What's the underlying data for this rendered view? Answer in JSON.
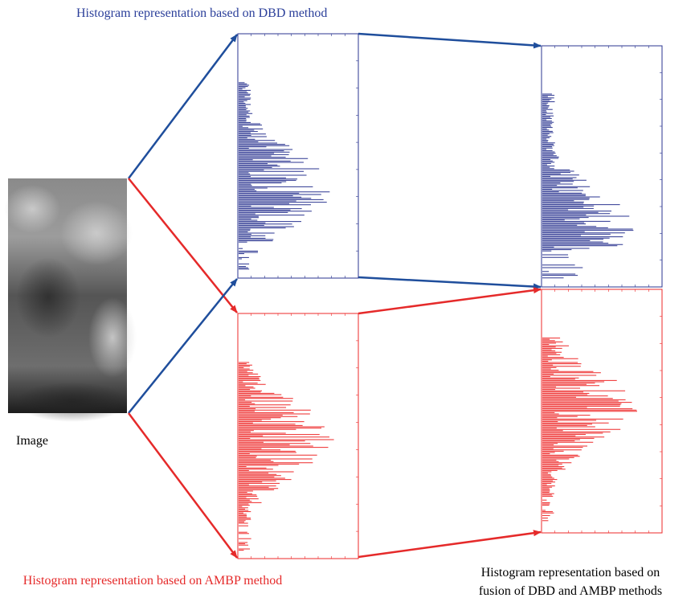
{
  "top_label": "Histogram representation based on DBD method",
  "image_label": "Image",
  "bottom_left_label": "Histogram representation based on AMBP method",
  "bottom_right_label": [
    "Histogram representation  based on",
    "fusion of DBD and AMBP methods"
  ]
}
